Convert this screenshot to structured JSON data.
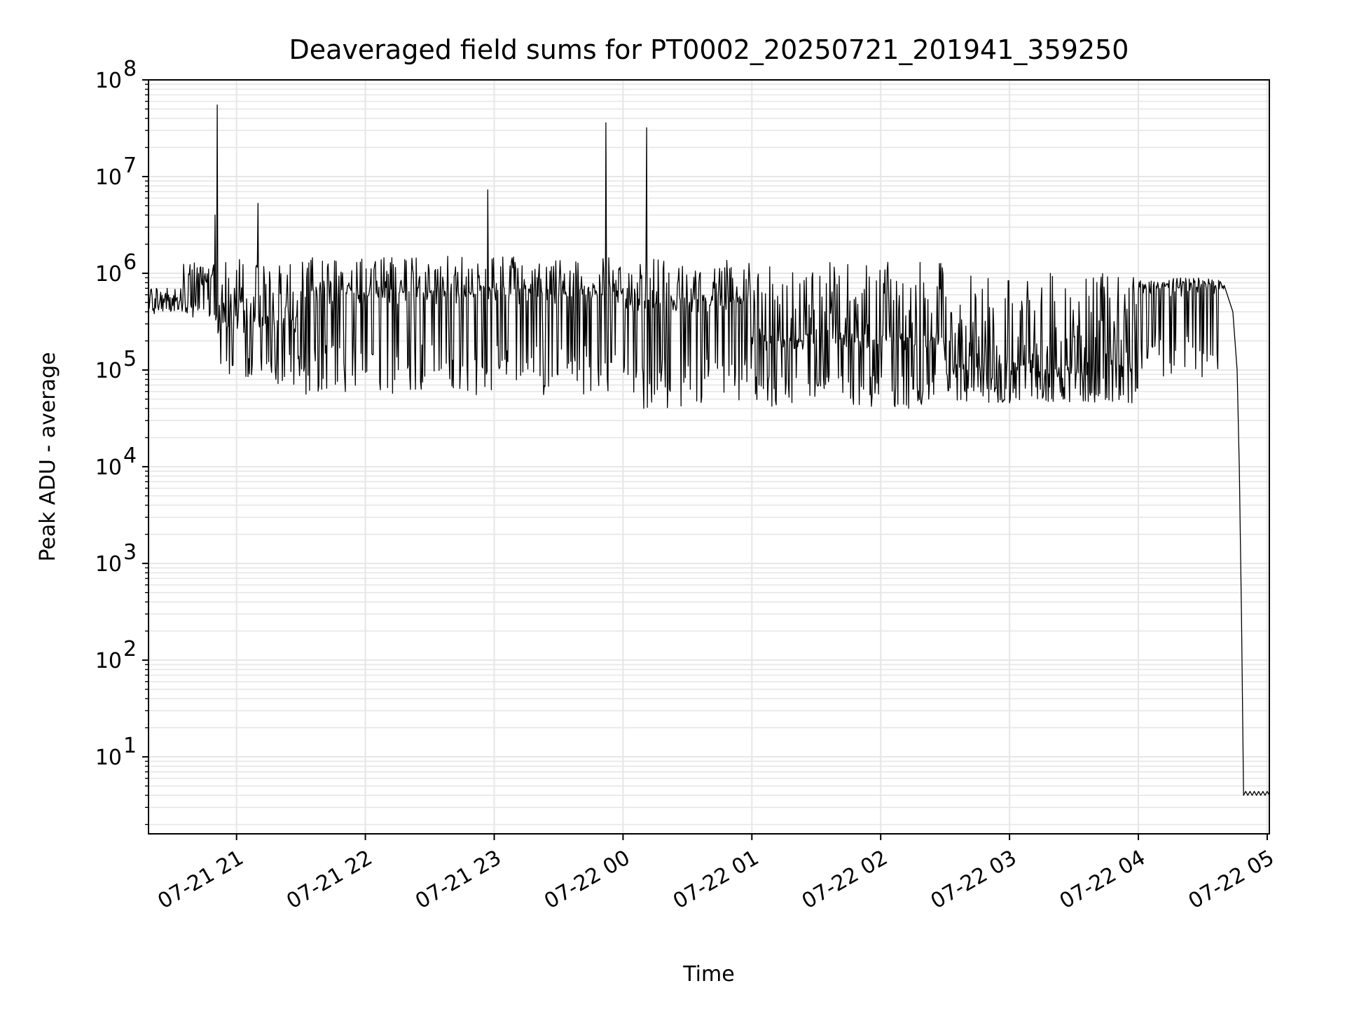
{
  "chart_data": {
    "type": "line",
    "title": "Deaveraged field sums for PT0002_20250721_201941_359250",
    "xlabel": "Time",
    "ylabel": "Peak ADU - average",
    "y_scale": "log",
    "ylim": [
      1.6,
      100000000
    ],
    "xlim": [
      "2025-07-21 20:19",
      "2025-07-22 05:01"
    ],
    "grid": true,
    "legend": "none",
    "line_color": "#000000",
    "x_ticks": [
      {
        "time": "2025-07-21 21:00",
        "label": "07-21 21"
      },
      {
        "time": "2025-07-21 22:00",
        "label": "07-21 22"
      },
      {
        "time": "2025-07-21 23:00",
        "label": "07-21 23"
      },
      {
        "time": "2025-07-22 00:00",
        "label": "07-22 00"
      },
      {
        "time": "2025-07-22 01:00",
        "label": "07-22 01"
      },
      {
        "time": "2025-07-22 02:00",
        "label": "07-22 02"
      },
      {
        "time": "2025-07-22 03:00",
        "label": "07-22 03"
      },
      {
        "time": "2025-07-22 04:00",
        "label": "07-22 04"
      },
      {
        "time": "2025-07-22 05:00",
        "label": "07-22 05"
      }
    ],
    "y_ticks": [
      {
        "value": 10,
        "base": "10",
        "exp": "1"
      },
      {
        "value": 100,
        "base": "10",
        "exp": "2"
      },
      {
        "value": 1000,
        "base": "10",
        "exp": "3"
      },
      {
        "value": 10000,
        "base": "10",
        "exp": "4"
      },
      {
        "value": 100000,
        "base": "10",
        "exp": "5"
      },
      {
        "value": 1000000,
        "base": "10",
        "exp": "6"
      },
      {
        "value": 10000000,
        "base": "10",
        "exp": "7"
      },
      {
        "value": 100000000,
        "base": "10",
        "exp": "8"
      }
    ],
    "series": [
      {
        "peaks": [
          {
            "time": "2025-07-21 20:50",
            "y": 4000000
          },
          {
            "time": "2025-07-21 20:51",
            "y": 55000000
          },
          {
            "time": "2025-07-21 21:10",
            "y": 5300000
          },
          {
            "time": "2025-07-21 22:57",
            "y": 7300000
          },
          {
            "time": "2025-07-21 23:52",
            "y": 36000000
          },
          {
            "time": "2025-07-22 00:11",
            "y": 32000000
          }
        ],
        "segments": [
          {
            "start": "2025-07-21 20:19",
            "end": "2025-07-21 20:35",
            "baseline": 500000,
            "upper": 700000,
            "lower": 380000
          },
          {
            "start": "2025-07-21 20:35",
            "end": "2025-07-21 20:50",
            "baseline": 900000,
            "upper": 1300000,
            "lower": 350000
          },
          {
            "start": "2025-07-21 20:50",
            "end": "2025-07-21 21:30",
            "baseline": 300000,
            "upper": 1500000,
            "lower": 70000
          },
          {
            "start": "2025-07-21 21:30",
            "end": "2025-07-22 00:00",
            "baseline": 600000,
            "upper": 1500000,
            "lower": 55000
          },
          {
            "start": "2025-07-22 00:00",
            "end": "2025-07-22 01:00",
            "baseline": 500000,
            "upper": 1400000,
            "lower": 40000
          },
          {
            "start": "2025-07-22 01:00",
            "end": "2025-07-22 02:30",
            "baseline": 200000,
            "upper": 1300000,
            "lower": 40000
          },
          {
            "start": "2025-07-22 02:30",
            "end": "2025-07-22 04:00",
            "baseline": 100000,
            "upper": 1000000,
            "lower": 45000
          },
          {
            "start": "2025-07-22 04:00",
            "end": "2025-07-22 04:40",
            "baseline": 700000,
            "upper": 900000,
            "lower": 80000
          }
        ],
        "tail": [
          {
            "time": "2025-07-22 04:40",
            "y": 750000
          },
          {
            "time": "2025-07-22 04:44",
            "y": 400000
          },
          {
            "time": "2025-07-22 04:46",
            "y": 100000
          },
          {
            "time": "2025-07-22 04:47",
            "y": 10000
          },
          {
            "time": "2025-07-22 04:48",
            "y": 300
          },
          {
            "time": "2025-07-22 04:49",
            "y": 4
          },
          {
            "time": "2025-07-22 05:01",
            "y": 4
          }
        ]
      }
    ]
  }
}
